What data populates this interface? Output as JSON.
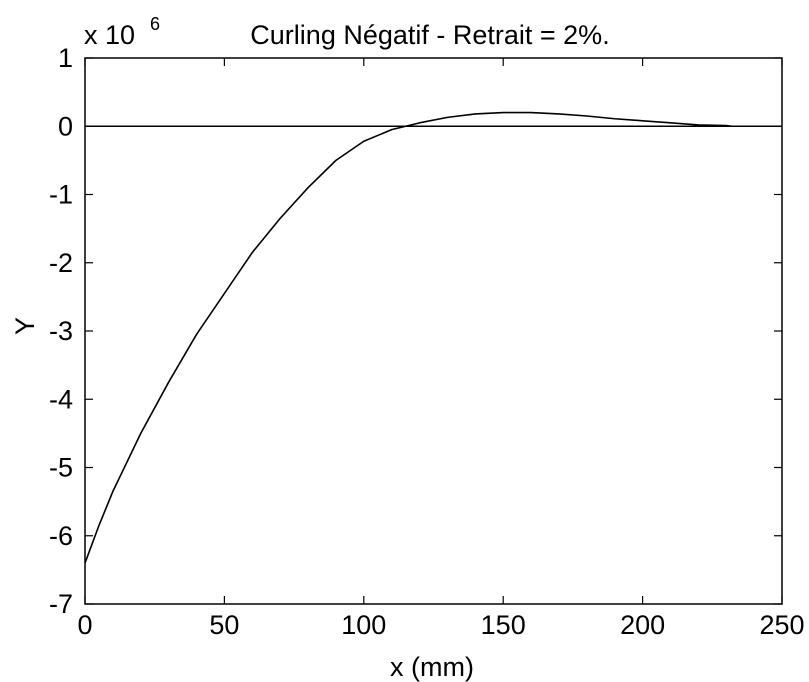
{
  "chart_data": {
    "type": "line",
    "title": "Curling Négatif - Retrait = 2%.",
    "xlabel": "x (mm)",
    "ylabel": "Y",
    "y_multiplier_label": "x 10",
    "y_multiplier_exponent": "6",
    "xlim": [
      0,
      250
    ],
    "ylim": [
      -7,
      1
    ],
    "xticks": [
      0,
      50,
      100,
      150,
      200,
      250
    ],
    "yticks": [
      1,
      0,
      -1,
      -2,
      -3,
      -4,
      -5,
      -6,
      -7
    ],
    "grid": false,
    "series": [
      {
        "color": "#000000",
        "x": [
          0,
          5,
          10,
          20,
          30,
          40,
          50,
          60,
          70,
          80,
          90,
          100,
          110,
          115,
          120,
          130,
          140,
          150,
          160,
          170,
          180,
          190,
          200,
          210,
          220,
          230,
          232
        ],
        "values": [
          -6.4,
          -5.85,
          -5.35,
          -4.5,
          -3.75,
          -3.05,
          -2.45,
          -1.85,
          -1.35,
          -0.9,
          -0.5,
          -0.22,
          -0.05,
          0.0,
          0.05,
          0.13,
          0.18,
          0.2,
          0.2,
          0.18,
          0.15,
          0.11,
          0.08,
          0.05,
          0.02,
          0.01,
          0.0
        ]
      },
      {
        "color": "#000000",
        "x": [
          0,
          250
        ],
        "values": [
          0,
          0
        ]
      }
    ]
  }
}
